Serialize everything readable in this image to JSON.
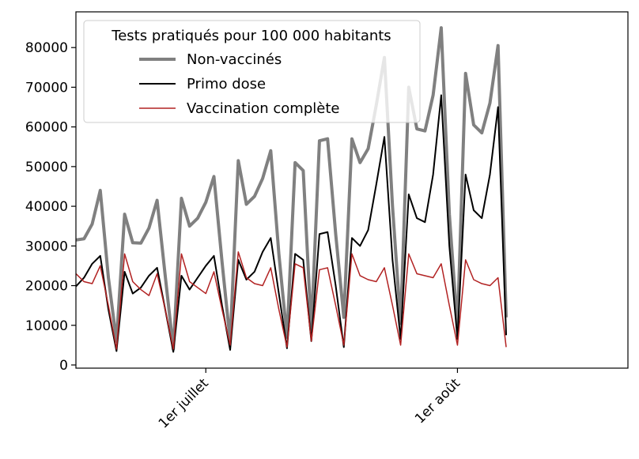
{
  "chart_data": {
    "type": "line",
    "title": "",
    "xlabel": "",
    "ylabel": "",
    "ylim": [
      -800,
      89000
    ],
    "x_start": "2021-06-15",
    "x_end": "2021-08-22",
    "x_ticks": [
      {
        "date": "2021-07-01",
        "label": "1er juillet"
      },
      {
        "date": "2021-08-01",
        "label": "1er août"
      }
    ],
    "y_ticks": [
      0,
      10000,
      20000,
      30000,
      40000,
      50000,
      60000,
      70000,
      80000
    ],
    "y_tick_labels": [
      "0",
      "10000",
      "20000",
      "30000",
      "40000",
      "50000",
      "60000",
      "70000",
      "80000"
    ],
    "legend": {
      "title": "Tests pratiqués pour 100 000 habitants",
      "placement": "top-left"
    },
    "dates": [
      "2021-06-15",
      "2021-06-16",
      "2021-06-17",
      "2021-06-18",
      "2021-06-19",
      "2021-06-20",
      "2021-06-21",
      "2021-06-22",
      "2021-06-23",
      "2021-06-24",
      "2021-06-25",
      "2021-06-26",
      "2021-06-27",
      "2021-06-28",
      "2021-06-29",
      "2021-06-30",
      "2021-07-01",
      "2021-07-02",
      "2021-07-03",
      "2021-07-04",
      "2021-07-05",
      "2021-07-06",
      "2021-07-07",
      "2021-07-08",
      "2021-07-09",
      "2021-07-10",
      "2021-07-11",
      "2021-07-12",
      "2021-07-13",
      "2021-07-14",
      "2021-07-15",
      "2021-07-16",
      "2021-07-17",
      "2021-07-18",
      "2021-07-19",
      "2021-07-20",
      "2021-07-21",
      "2021-07-22",
      "2021-07-23",
      "2021-07-24",
      "2021-07-25",
      "2021-07-26",
      "2021-07-27",
      "2021-07-28",
      "2021-07-29",
      "2021-07-30",
      "2021-07-31",
      "2021-08-01",
      "2021-08-02",
      "2021-08-03",
      "2021-08-04",
      "2021-08-05",
      "2021-08-06",
      "2021-08-07"
    ],
    "series": [
      {
        "name": "Non-vaccinés",
        "color": "#808080",
        "width": 4,
        "values": [
          31500,
          31800,
          35500,
          44000,
          22000,
          6000,
          38000,
          30800,
          30700,
          34500,
          41500,
          22500,
          4000,
          42000,
          35000,
          37000,
          41000,
          47500,
          26000,
          6000,
          51500,
          40500,
          42500,
          47000,
          54000,
          28000,
          7000,
          51000,
          49000,
          9000,
          56500,
          57000,
          33000,
          12000,
          57000,
          51000,
          54500,
          65500,
          77500,
          40000,
          10500,
          70000,
          59500,
          59000,
          68000,
          85000,
          38000,
          9500,
          73500,
          60500,
          58500,
          66000,
          80500,
          12000
        ]
      },
      {
        "name": "Primo dose",
        "color": "#000000",
        "width": 2,
        "values": [
          19800,
          22000,
          25500,
          27500,
          14000,
          3500,
          23500,
          18000,
          19500,
          22500,
          24500,
          14000,
          3300,
          22500,
          19000,
          22000,
          25000,
          27500,
          15000,
          3800,
          26500,
          21500,
          23500,
          28500,
          32000,
          18000,
          4200,
          28000,
          26500,
          6000,
          33000,
          33500,
          20000,
          4500,
          32000,
          30000,
          34000,
          45500,
          57500,
          26500,
          6500,
          43000,
          37000,
          36000,
          48000,
          68000,
          30000,
          6500,
          48000,
          39000,
          37000,
          48000,
          65000,
          7500
        ]
      },
      {
        "name": "Vaccination complète",
        "color": "#b22222",
        "width": 1.5,
        "values": [
          23000,
          21000,
          20500,
          25000,
          15000,
          4000,
          28000,
          21000,
          19000,
          17500,
          23000,
          14000,
          4000,
          28000,
          21000,
          19500,
          18000,
          23500,
          14000,
          5000,
          28500,
          22000,
          20500,
          20000,
          24500,
          14000,
          4500,
          25500,
          24500,
          6000,
          24000,
          24500,
          15000,
          5000,
          28000,
          22500,
          21500,
          21000,
          24500,
          15000,
          5000,
          28000,
          23000,
          22500,
          22000,
          25500,
          15000,
          5000,
          26500,
          21500,
          20500,
          20000,
          22000,
          4500
        ]
      }
    ]
  }
}
